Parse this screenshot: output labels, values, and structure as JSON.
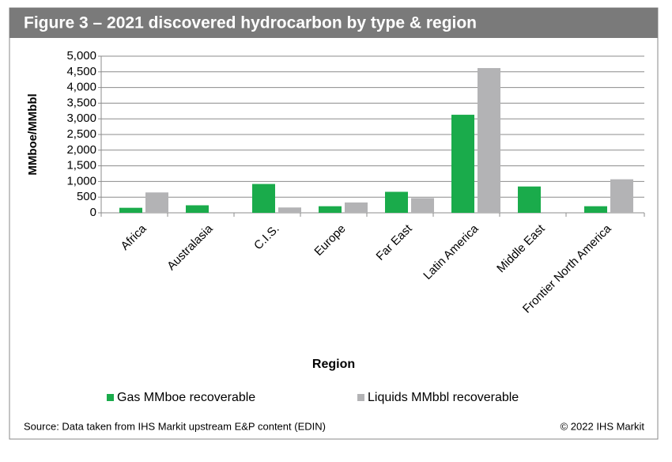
{
  "chart_data": {
    "type": "bar",
    "title": "Figure 3 – 2021 discovered hydrocarbon by type & region",
    "x_label": "Region",
    "y_label": "MMboe/MMbbl",
    "categories": [
      "Africa",
      "Australasia",
      "C.I.S.",
      "Europe",
      "Far East",
      "Latin America",
      "Middle East",
      "Frontier North America"
    ],
    "series": [
      {
        "name": "Gas MMboe recoverable",
        "color": "#1aab4b",
        "values": [
          160,
          240,
          920,
          210,
          670,
          3130,
          840,
          210
        ]
      },
      {
        "name": "Liquids MMbbl recoverable",
        "color": "#b3b3b5",
        "values": [
          650,
          0,
          170,
          330,
          470,
          4620,
          0,
          1070
        ]
      }
    ],
    "ylim": [
      0,
      5000
    ],
    "yticks": [
      0,
      500,
      {
        "value": 1000,
        "label": "1,000"
      },
      {
        "value": 1500,
        "label": "1,500"
      },
      {
        "value": 2000,
        "label": "2,000"
      },
      {
        "value": 2500,
        "label": "2,500"
      },
      {
        "value": 3000,
        "label": "3,000"
      },
      {
        "value": 3500,
        "label": "3,500"
      },
      {
        "value": 4000,
        "label": "4,000"
      },
      {
        "value": 4500,
        "label": "4,500"
      },
      {
        "value": 5000,
        "label": "5,000"
      }
    ],
    "source": "Source: Data taken from IHS Markit upstream E&P content (EDIN)",
    "copyright": "© 2022 IHS Markit"
  }
}
